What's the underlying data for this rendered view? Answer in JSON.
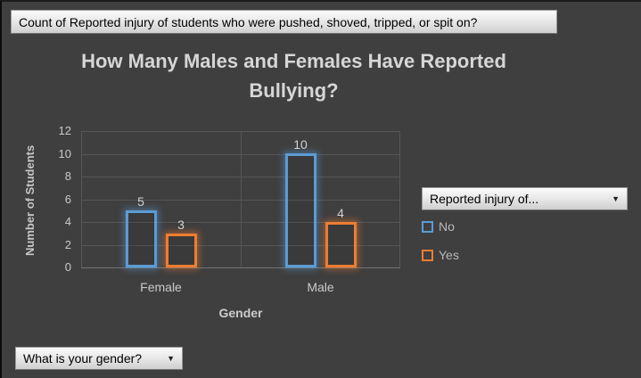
{
  "page": {
    "background": "#3f3f3f"
  },
  "top_field_button": {
    "label": "Count of Reported injury of students who were pushed, shoved, tripped, or spit on?"
  },
  "chart": {
    "title_line1": "How Many Males and Females Have Reported",
    "title_line2": "Bullying?",
    "y_axis_title": "Number of Students",
    "x_axis_title": "Gender",
    "y_ticks": [
      "12",
      "10",
      "8",
      "6",
      "4",
      "2",
      "0"
    ]
  },
  "chart_data": {
    "type": "bar",
    "title": "How Many Males and Females Have Reported Bullying?",
    "categories": [
      "Female",
      "Male"
    ],
    "series": [
      {
        "name": "No",
        "values": [
          5,
          10
        ],
        "color": "#5B9BD5"
      },
      {
        "name": "Yes",
        "values": [
          3,
          4
        ],
        "color": "#ED7D31"
      }
    ],
    "xlabel": "Gender",
    "ylabel": "Number of Students",
    "ylim": [
      0,
      12
    ],
    "ytick_step": 2,
    "grid": true,
    "legend_position": "right",
    "data_labels": true
  },
  "legend": {
    "filter_button": {
      "label": "Reported injury of...",
      "arrow": "▼"
    },
    "items": [
      {
        "label": "No",
        "color": "#5B9BD5"
      },
      {
        "label": "Yes",
        "color": "#ED7D31"
      }
    ]
  },
  "bottom_field_button": {
    "label": "What is your gender?",
    "arrow": "▼"
  },
  "colors": {
    "grid": "#565656",
    "text": "#c9c9c9",
    "title": "#d6d6d6"
  }
}
